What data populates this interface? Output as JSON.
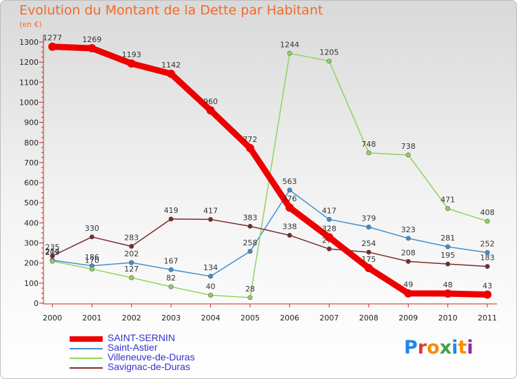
{
  "title": "Evolution du Montant de la Dette par Habitant",
  "unit_label": "(en €)",
  "logo": {
    "letters": [
      "P",
      "r",
      "o",
      "x",
      "i",
      "t",
      "i"
    ],
    "colors": [
      "#1e88e5",
      "#e53935",
      "#fb8c00",
      "#43a047",
      "#1e88e5",
      "#fb8c00",
      "#8e24aa"
    ]
  },
  "chart_data": {
    "type": "line",
    "title": "Evolution du Montant de la Dette par Habitant",
    "ylabel": "(en €)",
    "x": [
      "2000",
      "2001",
      "2002",
      "2003",
      "2004",
      "2005",
      "2006",
      "2007",
      "2008",
      "2009",
      "2010",
      "2011"
    ],
    "ylim": [
      0,
      1300
    ],
    "yticks": [
      0,
      100,
      200,
      300,
      400,
      500,
      600,
      700,
      800,
      900,
      1000,
      1100,
      1200,
      1300
    ],
    "grid": false,
    "legend_position": "bottom-left",
    "series": [
      {
        "name": "SAINT-SERNIN",
        "color": "#ee0000",
        "emphasis": true,
        "values": [
          1277,
          1269,
          1193,
          1142,
          960,
          772,
          476,
          328,
          175,
          49,
          48,
          43
        ]
      },
      {
        "name": "Saint-Astier",
        "color": "#3f8fcf",
        "emphasis": false,
        "values": [
          214,
          186,
          202,
          167,
          134,
          258,
          563,
          417,
          379,
          323,
          281,
          252
        ]
      },
      {
        "name": "Villeneuve-de-Duras",
        "color": "#8fd35e",
        "emphasis": false,
        "values": [
          209,
          170,
          127,
          82,
          40,
          28,
          1244,
          1205,
          748,
          738,
          471,
          408
        ]
      },
      {
        "name": "Savignac-de-Duras",
        "color": "#7a2a2a",
        "emphasis": false,
        "values": [
          235,
          330,
          283,
          419,
          417,
          383,
          338,
          270,
          254,
          208,
          195,
          183
        ]
      }
    ]
  }
}
